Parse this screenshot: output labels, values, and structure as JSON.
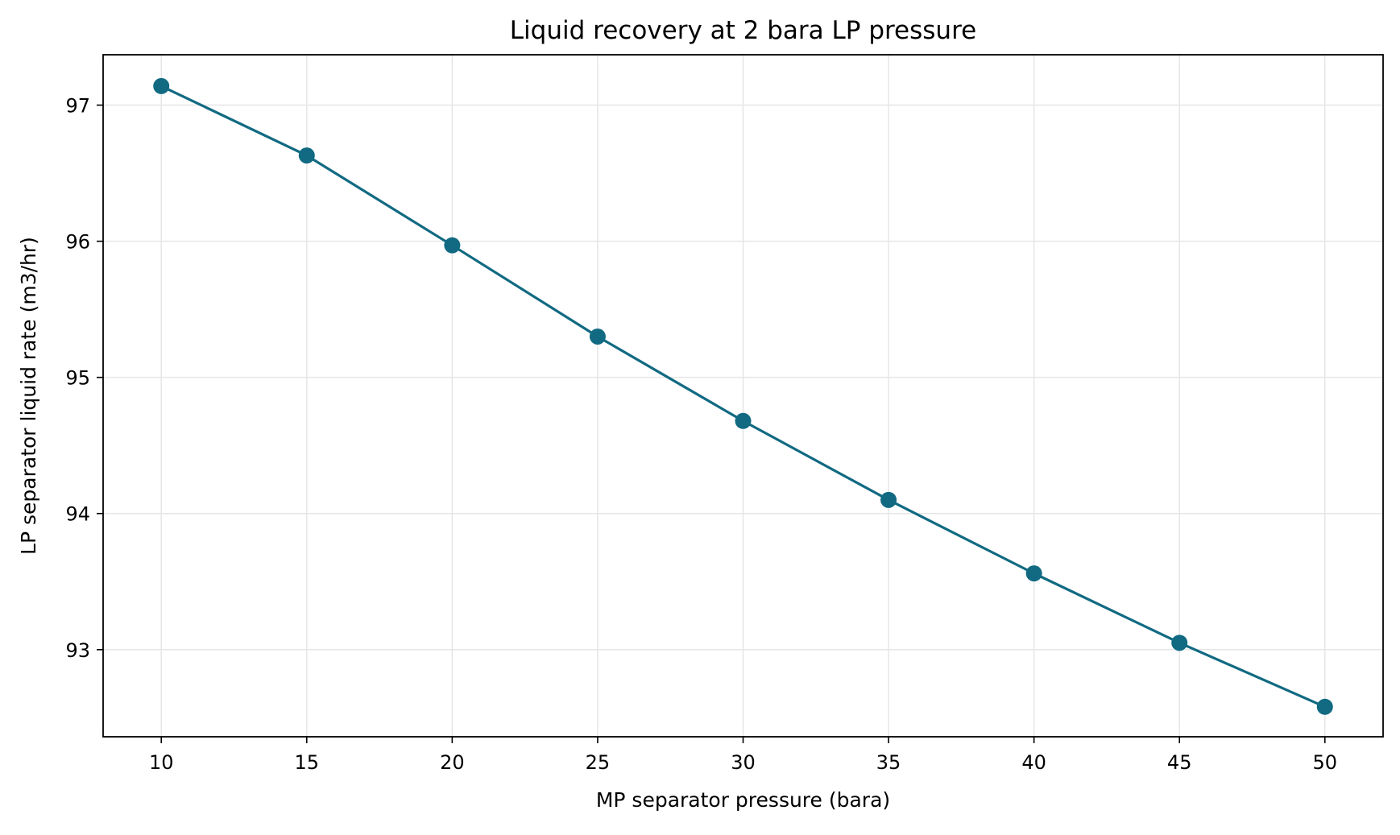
{
  "chart_data": {
    "type": "line",
    "title": "Liquid recovery at 2 bara LP pressure",
    "xlabel": "MP separator pressure (bara)",
    "ylabel": "LP separator liquid rate (m3/hr)",
    "x": [
      10,
      15,
      20,
      25,
      30,
      35,
      40,
      45,
      50
    ],
    "series": [
      {
        "values": [
          97.14,
          96.63,
          95.97,
          95.3,
          94.68,
          94.1,
          93.56,
          93.05,
          92.58
        ],
        "color": "#116a82",
        "marker": "circle"
      }
    ],
    "xlim": [
      8.0,
      52.0
    ],
    "ylim": [
      92.36,
      97.37
    ],
    "xticks": [
      10,
      15,
      20,
      25,
      30,
      35,
      40,
      45,
      50
    ],
    "yticks": [
      93,
      94,
      95,
      96,
      97
    ],
    "grid": true,
    "legend": "none"
  }
}
